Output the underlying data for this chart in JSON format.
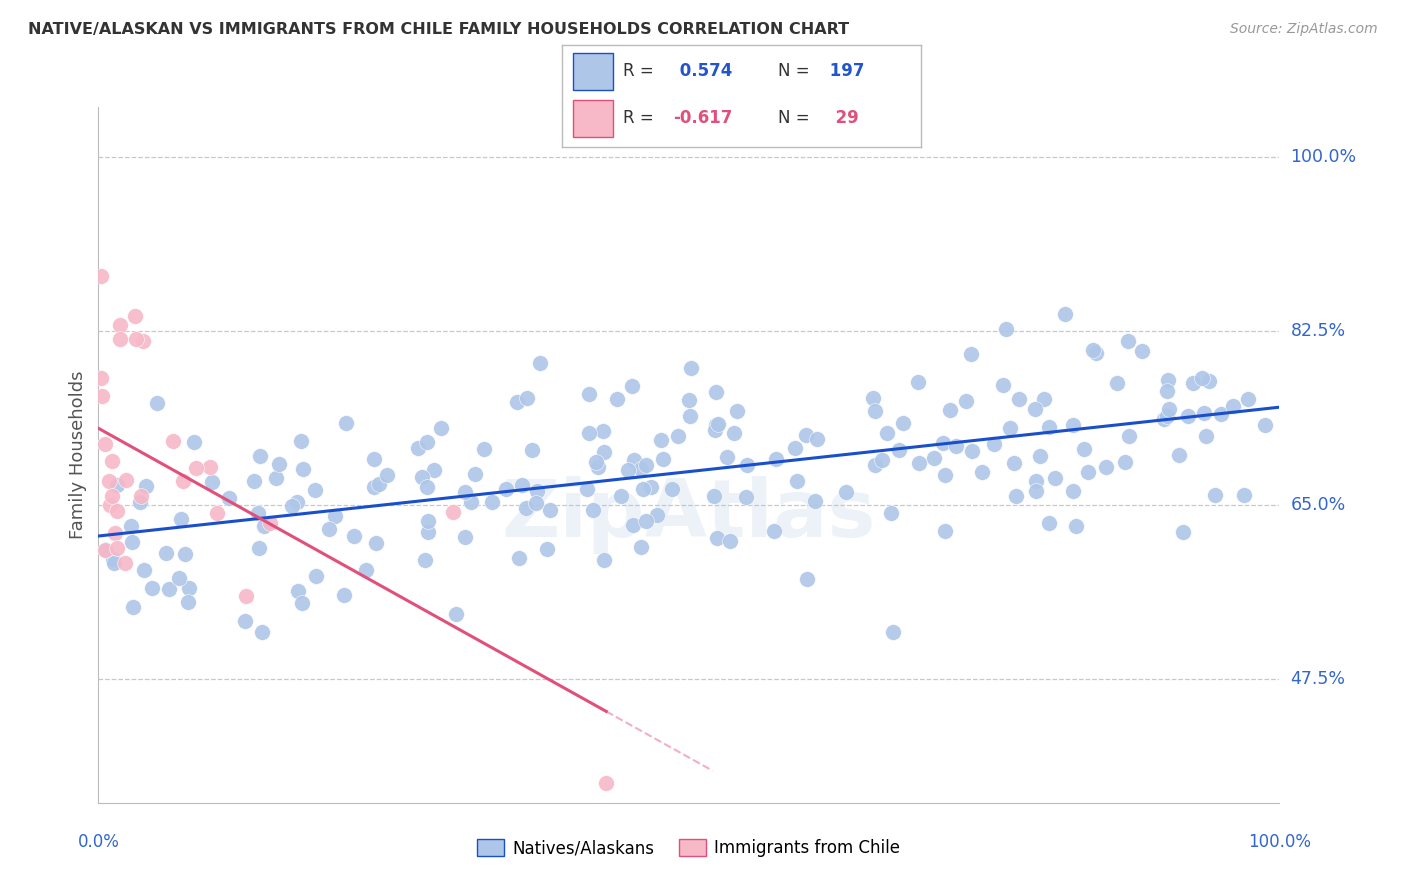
{
  "title": "NATIVE/ALASKAN VS IMMIGRANTS FROM CHILE FAMILY HOUSEHOLDS CORRELATION CHART",
  "source": "Source: ZipAtlas.com",
  "ylabel": "Family Households",
  "ytick_vals": [
    47.5,
    65.0,
    82.5,
    100.0
  ],
  "ytick_labels": [
    "47.5%",
    "65.0%",
    "82.5%",
    "100.0%"
  ],
  "xmin": 0.0,
  "xmax": 100.0,
  "ymin": 35.0,
  "ymax": 105.0,
  "blue_R": 0.574,
  "blue_N": 197,
  "pink_R": -0.617,
  "pink_N": 29,
  "legend_label_blue": "Natives/Alaskans",
  "legend_label_pink": "Immigrants from Chile",
  "blue_color": "#aec6e8",
  "blue_line_color": "#1a4fcc",
  "pink_color": "#f7b8c8",
  "pink_line_color": "#e0507a",
  "title_color": "#333333",
  "axis_label_color": "#2255cc",
  "right_label_color": "#3366cc",
  "watermark": "ZipAtlas",
  "background_color": "#ffffff",
  "grid_color": "#c8c8c8"
}
